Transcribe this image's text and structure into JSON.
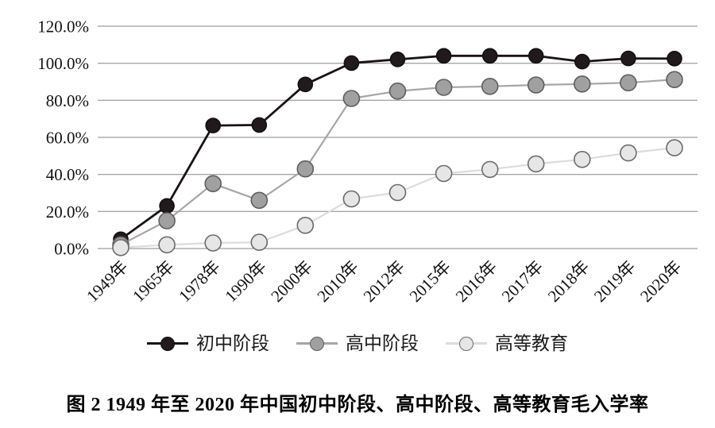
{
  "figure": {
    "caption": "图 2  1949 年至 2020 年中国初中阶段、高中阶段、高等教育毛入学率"
  },
  "chart_data": {
    "type": "line",
    "title": "",
    "xlabel": "",
    "ylabel": "",
    "categories": [
      "1949年",
      "1965年",
      "1978年",
      "1990年",
      "2000年",
      "2010年",
      "2012年",
      "2015年",
      "2016年",
      "2017年",
      "2018年",
      "2019年",
      "2020年"
    ],
    "series": [
      {
        "id": "junior-secondary",
        "name": "初中阶段",
        "values": [
          5.0,
          23.0,
          66.4,
          66.7,
          88.6,
          100.1,
          102.1,
          104.0,
          104.0,
          104.0,
          100.9,
          102.6,
          102.5
        ],
        "line_color": "#1a1214",
        "line_width": 2.8,
        "marker_fill": "#211a1d",
        "marker_stroke": "#140f11",
        "marker_radius": 9
      },
      {
        "id": "senior-secondary",
        "name": "高中阶段",
        "values": [
          2.0,
          15.0,
          35.0,
          26.0,
          43.0,
          81.0,
          85.0,
          87.0,
          87.5,
          88.3,
          88.8,
          89.5,
          91.2
        ],
        "line_color": "#a6a6a6",
        "line_width": 2.2,
        "marker_fill": "#a0a0a0",
        "marker_stroke": "#5e5e5e",
        "marker_radius": 10
      },
      {
        "id": "higher-education",
        "name": "高等教育",
        "values": [
          0.5,
          2.0,
          3.0,
          3.4,
          12.5,
          26.8,
          30.2,
          40.5,
          42.7,
          45.7,
          48.1,
          51.6,
          54.4
        ],
        "line_color": "#dcdcdc",
        "line_width": 2.2,
        "marker_fill": "#e6e6e6",
        "marker_stroke": "#6b6b6b",
        "marker_radius": 10
      }
    ],
    "y_axis": {
      "ticks": [
        "120.0%",
        "100.0%",
        "80.0%",
        "60.0%",
        "40.0%",
        "20.0%",
        "0.0%"
      ],
      "min": 0,
      "max": 120,
      "step": 20,
      "unit": "%"
    },
    "grid": true,
    "gridline_color": "#858585",
    "legend_position": "bottom",
    "background_color": "#ffffff",
    "text_color": "#111111"
  }
}
